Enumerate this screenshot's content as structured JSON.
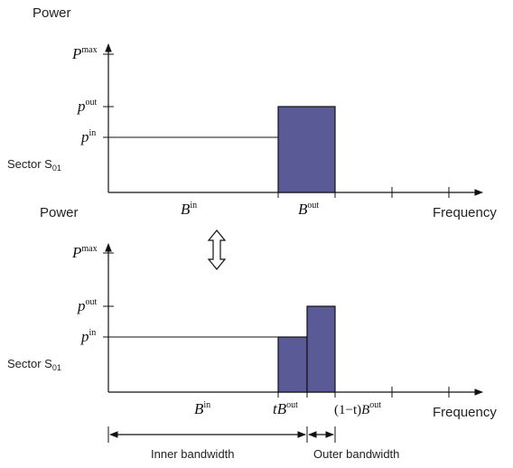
{
  "top_panel": {
    "y_axis_title": "Power",
    "sector_label": "Sector S",
    "sector_sub": "01",
    "pmax": {
      "base": "P",
      "sup": "max"
    },
    "pout": {
      "base": "p",
      "sup": "out"
    },
    "pin": {
      "base": "p",
      "sup": "in"
    },
    "bin": {
      "base": "B",
      "sup": "in"
    },
    "bout": {
      "base": "B",
      "sup": "out"
    }
  },
  "bottom_panel": {
    "y_axis_title": "Power",
    "x_axis_title": "Frequency",
    "sector_label": "Sector S",
    "sector_sub": "01",
    "pmax": {
      "base": "P",
      "sup": "max"
    },
    "pout": {
      "base": "p",
      "sup": "out"
    },
    "pin": {
      "base": "p",
      "sup": "in"
    },
    "bin": {
      "base": "B",
      "sup": "in"
    },
    "tbout": {
      "prefix": "t",
      "base": "B",
      "sup": "out"
    },
    "onemt_bout": {
      "prefix": "(1−t)",
      "base": "B",
      "sup": "out"
    },
    "x_axis_title_bottom": "Frequency"
  },
  "top_x_axis_title": "Frequency",
  "inner_bandwidth": "Inner bandwidth",
  "outer_bandwidth": "Outer bandwidth",
  "colors": {
    "bar_fill": "#5a5a96",
    "line": "#111111"
  }
}
